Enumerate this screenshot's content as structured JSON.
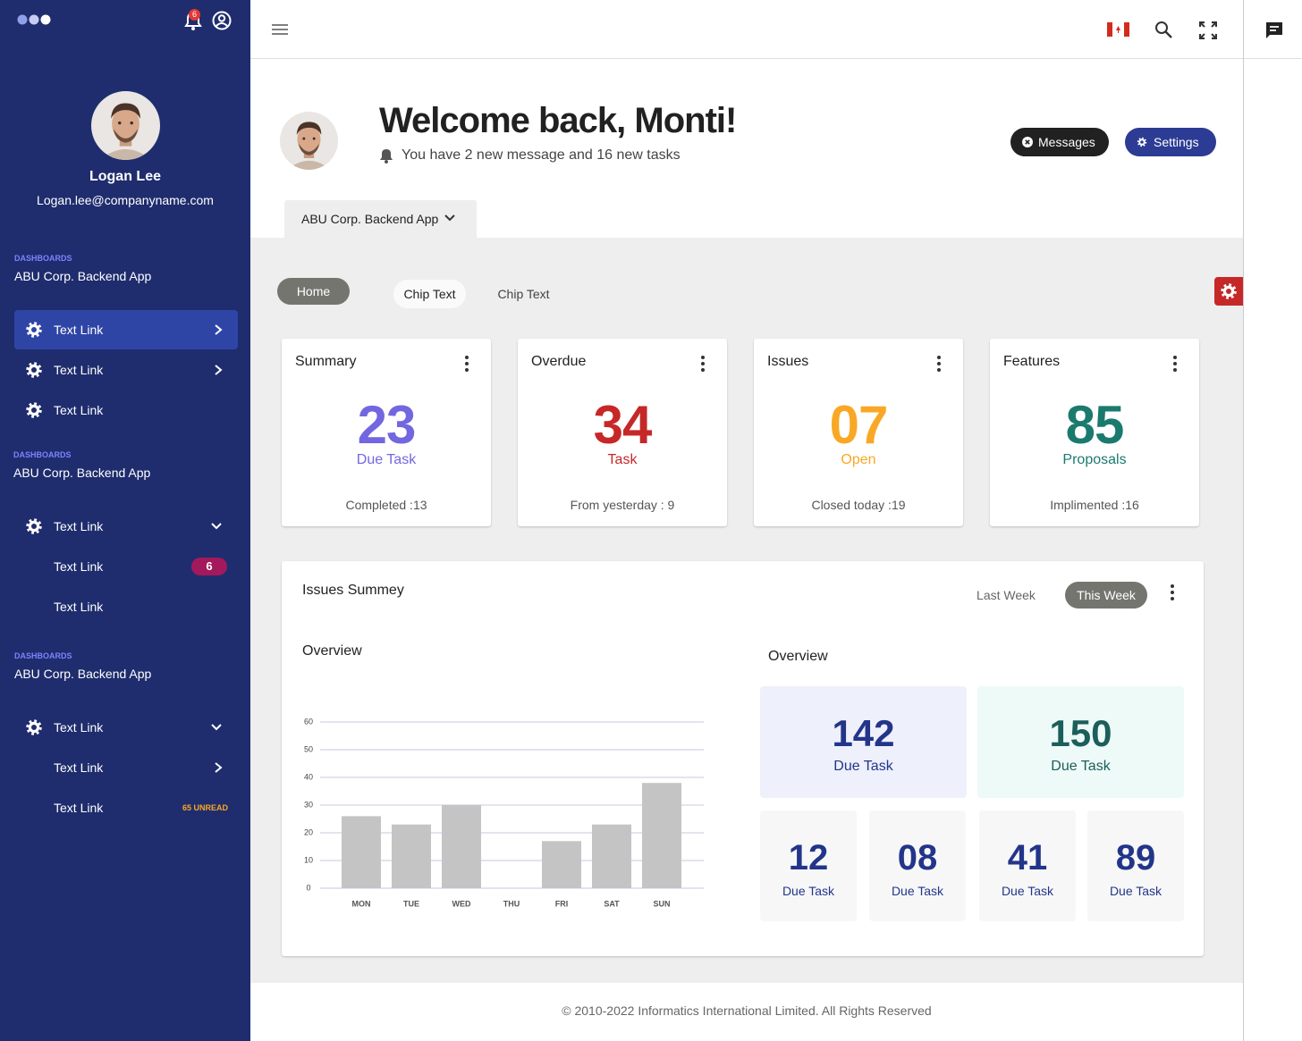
{
  "sidebar": {
    "notifications": "6",
    "profile": {
      "name": "Logan Lee",
      "email": "Logan.lee@companyname.com"
    },
    "sections": [
      {
        "heading": "DASHBOARDS",
        "subtitle": "ABU Corp. Backend App",
        "items": [
          {
            "label": "Text Link"
          },
          {
            "label": "Text Link"
          },
          {
            "label": "Text Link"
          }
        ]
      },
      {
        "heading": "DASHBOARDS",
        "subtitle": "ABU Corp. Backend App",
        "items": [
          {
            "label": "Text Link"
          },
          {
            "label": "Text Link",
            "badge": "6"
          },
          {
            "label": "Text Link"
          }
        ]
      },
      {
        "heading": "DASHBOARDS",
        "subtitle": "ABU Corp. Backend App",
        "items": [
          {
            "label": "Text Link"
          },
          {
            "label": "Text Link"
          },
          {
            "label": "Text Link",
            "badge": "65 UNREAD"
          }
        ]
      }
    ]
  },
  "welcome": {
    "title": "Welcome back, Monti!",
    "subtitle": "You have 2 new message and 16 new tasks"
  },
  "buttons": [
    "Messages",
    "Settings"
  ],
  "app_tab": "ABU Corp. Backend App",
  "chips": [
    "Home",
    "Chip Text",
    "Chip Text"
  ],
  "cards": [
    {
      "title": "Summary",
      "value": "23",
      "label": "Due Task",
      "footer": "Completed :13"
    },
    {
      "title": "Overdue",
      "value": "34",
      "label": "Task",
      "footer": "From yesterday : 9"
    },
    {
      "title": "Issues",
      "value": "07",
      "label": "Open",
      "footer": "Closed today :19"
    },
    {
      "title": "Features",
      "value": "85",
      "label": "Proposals",
      "footer": "Implimented :16"
    }
  ],
  "issues_summary": {
    "title": "Issues Summey",
    "periods": [
      "Last Week",
      "This Week"
    ],
    "left_heading": "Overview",
    "right_heading": "Overview",
    "chart": {
      "type": "bar",
      "categories": [
        "MON",
        "TUE",
        "WED",
        "THU",
        "FRI",
        "SAT",
        "SUN"
      ],
      "values": [
        26,
        23,
        30,
        null,
        17,
        23,
        38
      ],
      "color": "#c4c4c4",
      "ylim": [
        0,
        60
      ],
      "yticks": [
        0,
        10,
        20,
        30,
        40,
        50,
        60
      ],
      "grid": true
    },
    "stats": [
      {
        "value": "142",
        "label": "Due Task"
      },
      {
        "value": "150",
        "label": "Due Task"
      },
      {
        "value": "12",
        "label": "Due Task"
      },
      {
        "value": "08",
        "label": "Due Task"
      },
      {
        "value": "41",
        "label": "Due Task"
      },
      {
        "value": "89",
        "label": "Due Task"
      }
    ]
  },
  "footer": "© 2010-2022 Informatics International Limited. All Rights Reserved"
}
